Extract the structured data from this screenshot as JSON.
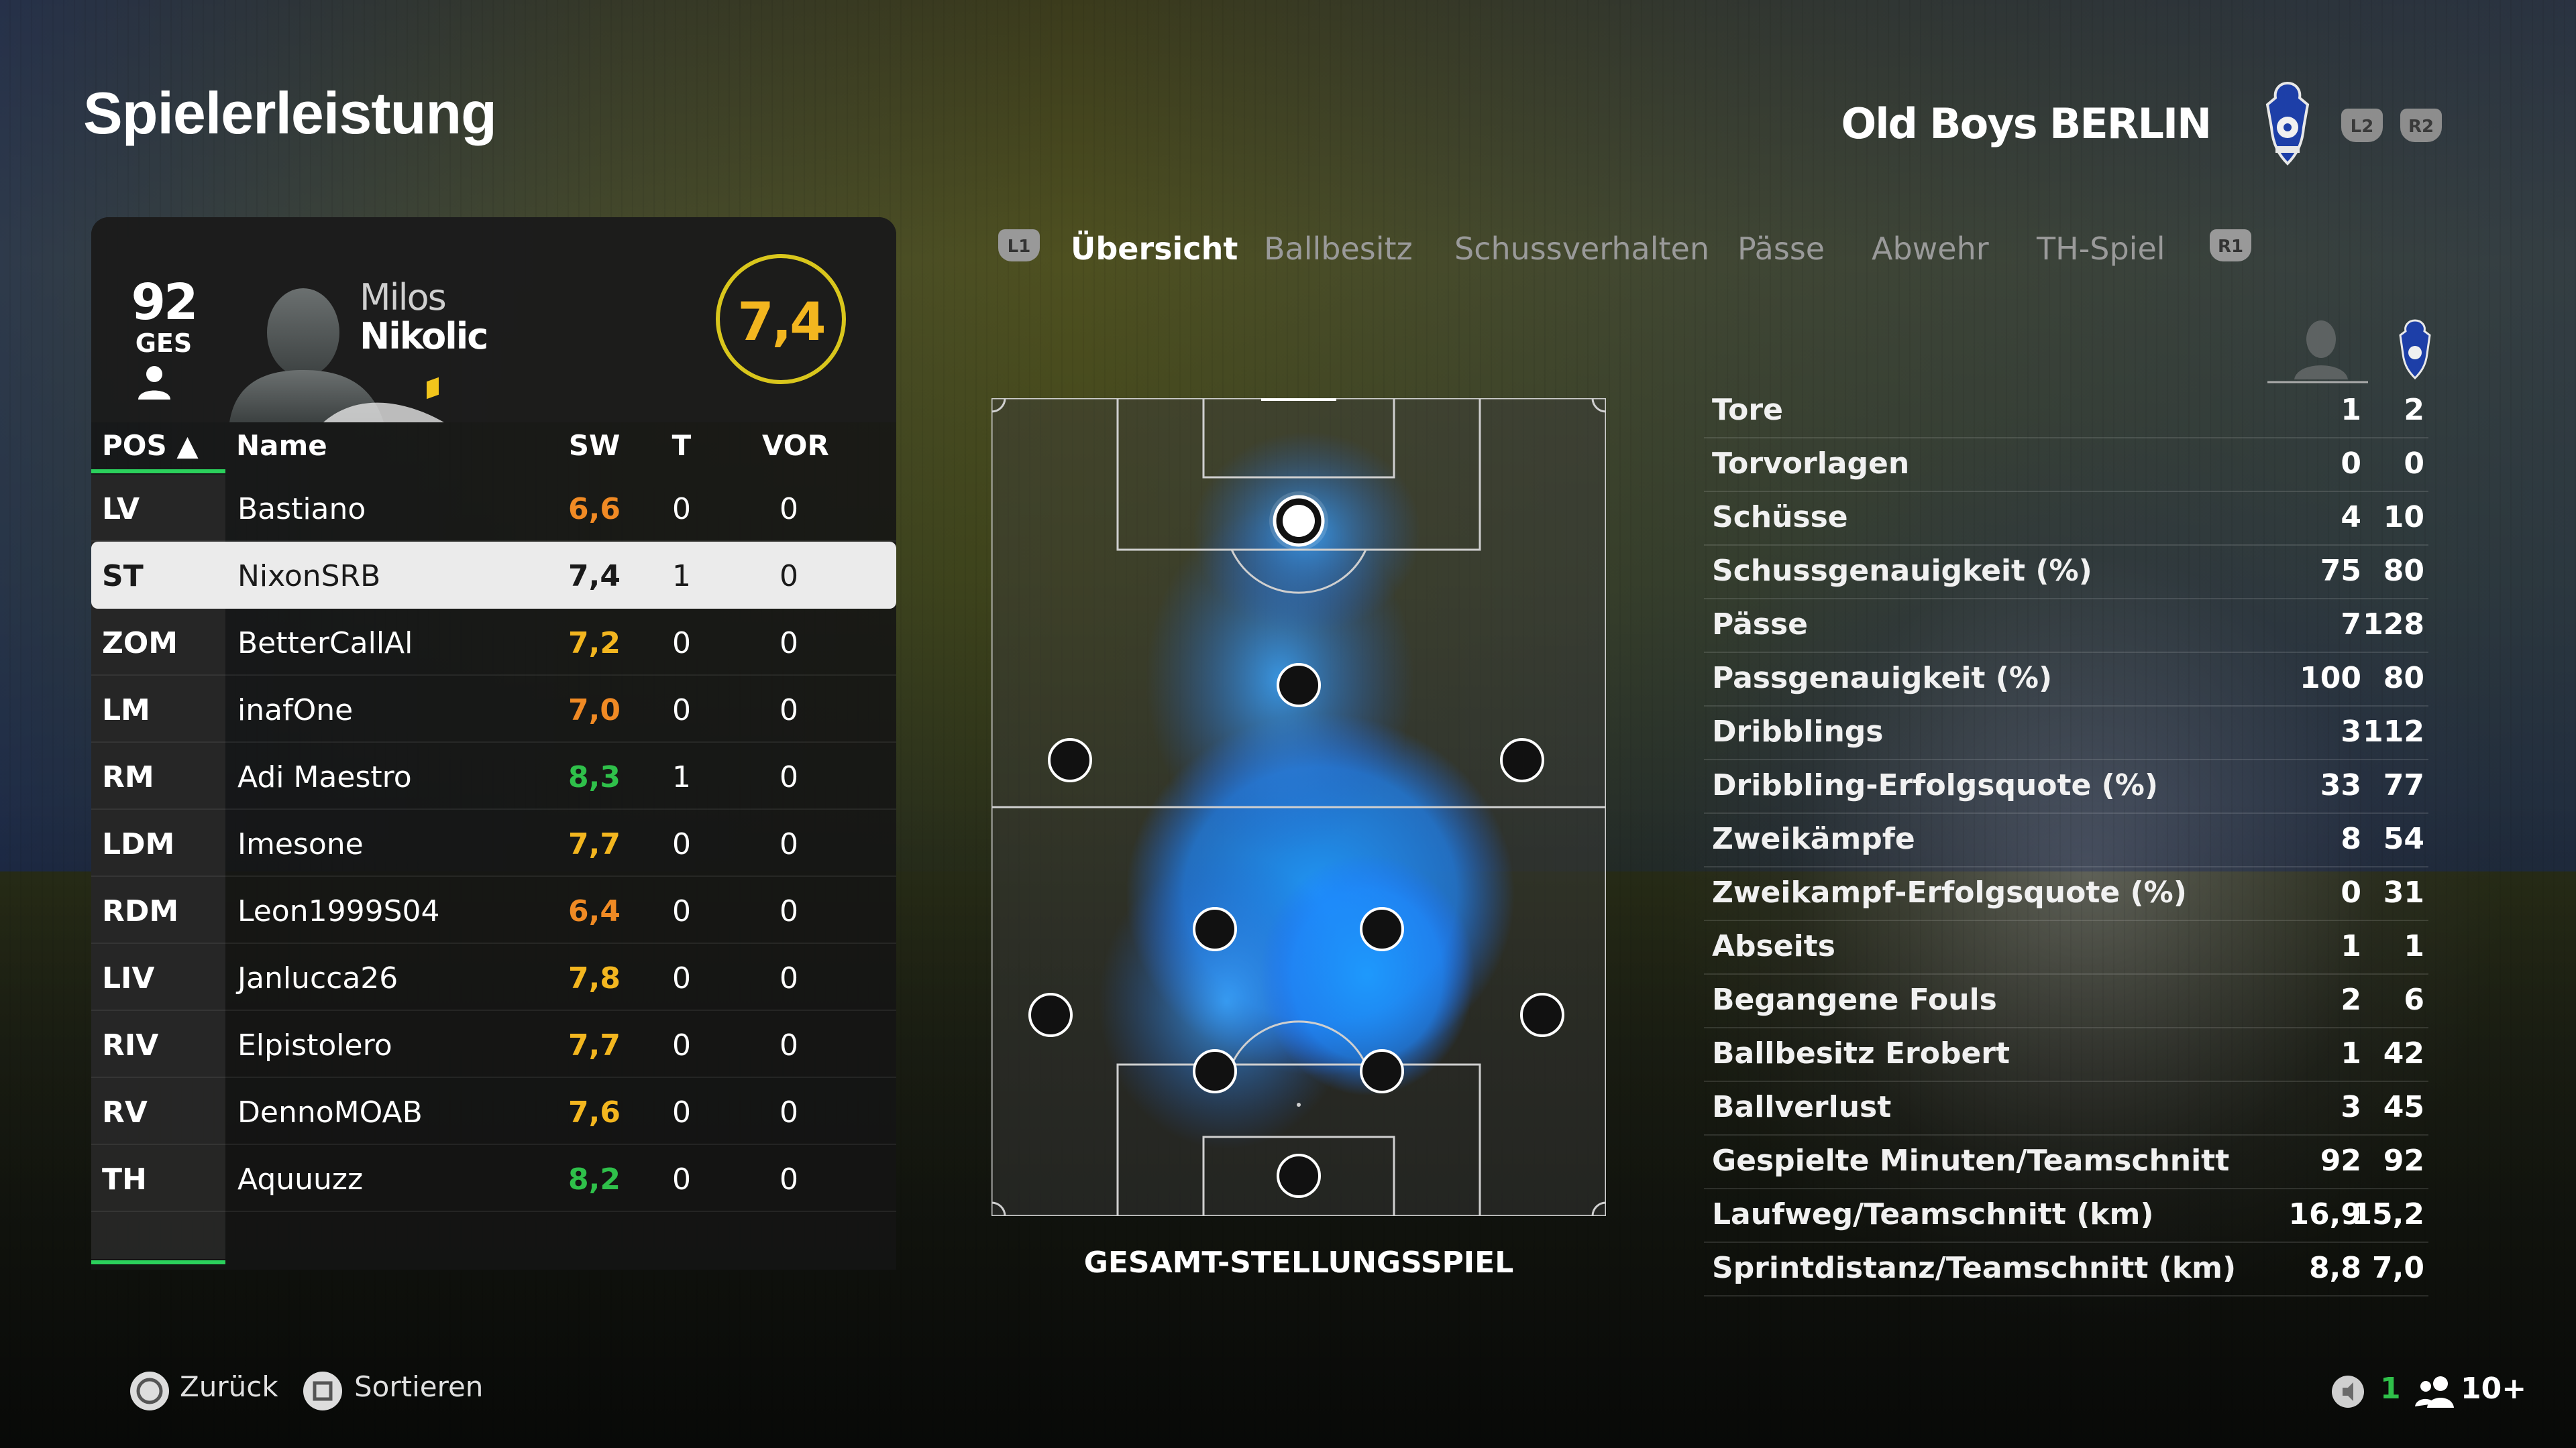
{
  "page": {
    "title": "Spielerleistung"
  },
  "team": {
    "name": "Old Boys BERLIN",
    "btn_left": "L2",
    "btn_right": "R2"
  },
  "player": {
    "overall": "92",
    "overall_label": "GES",
    "first_name": "Milos",
    "last_name": "Nikolic",
    "rating": "7,4"
  },
  "table": {
    "headers": {
      "pos": "POS ▲",
      "name": "Name",
      "sw": "SW",
      "t": "T",
      "vor": "VOR"
    },
    "rows": [
      {
        "pos": "LV",
        "name": "Bastiano",
        "sw": "6,6",
        "t": "0",
        "vor": "0",
        "color": "#f08a24"
      },
      {
        "pos": "ST",
        "name": "NixonSRB",
        "sw": "7,4",
        "t": "1",
        "vor": "0",
        "color": "#1a1a1a"
      },
      {
        "pos": "ZOM",
        "name": "BetterCallAl",
        "sw": "7,2",
        "t": "0",
        "vor": "0",
        "color": "#f3b61f"
      },
      {
        "pos": "LM",
        "name": "inafOne",
        "sw": "7,0",
        "t": "0",
        "vor": "0",
        "color": "#f08a24"
      },
      {
        "pos": "RM",
        "name": "Adi Maestro",
        "sw": "8,3",
        "t": "1",
        "vor": "0",
        "color": "#2fc04a"
      },
      {
        "pos": "LDM",
        "name": "Imesone",
        "sw": "7,7",
        "t": "0",
        "vor": "0",
        "color": "#f3b61f"
      },
      {
        "pos": "RDM",
        "name": "Leon1999S04",
        "sw": "6,4",
        "t": "0",
        "vor": "0",
        "color": "#f08a24"
      },
      {
        "pos": "LIV",
        "name": "Janlucca26",
        "sw": "7,8",
        "t": "0",
        "vor": "0",
        "color": "#f3b61f"
      },
      {
        "pos": "RIV",
        "name": "Elpistolero",
        "sw": "7,7",
        "t": "0",
        "vor": "0",
        "color": "#f3b61f"
      },
      {
        "pos": "RV",
        "name": "DennoMOAB",
        "sw": "7,6",
        "t": "0",
        "vor": "0",
        "color": "#f3b61f"
      },
      {
        "pos": "TH",
        "name": "Aquuuzz",
        "sw": "8,2",
        "t": "0",
        "vor": "0",
        "color": "#2fc04a"
      }
    ]
  },
  "tabs": {
    "left_bumper": "L1",
    "right_bumper": "R1",
    "items": [
      "Übersicht",
      "Ballbesitz",
      "Schussverhalten",
      "Pässe",
      "Abwehr",
      "TH-Spiel"
    ],
    "active": "Übersicht"
  },
  "pitch": {
    "label": "GESAMT-STELLUNGSSPIEL"
  },
  "stats": [
    {
      "label": "Tore",
      "player": "1",
      "team": "2"
    },
    {
      "label": "Torvorlagen",
      "player": "0",
      "team": "0"
    },
    {
      "label": "Schüsse",
      "player": "4",
      "team": "10"
    },
    {
      "label": "Schussgenauigkeit (%)",
      "player": "75",
      "team": "80"
    },
    {
      "label": "Pässe",
      "player": "7",
      "team": "128"
    },
    {
      "label": "Passgenauigkeit (%)",
      "player": "100",
      "team": "80"
    },
    {
      "label": "Dribblings",
      "player": "3",
      "team": "112"
    },
    {
      "label": "Dribbling-Erfolgsquote (%)",
      "player": "33",
      "team": "77"
    },
    {
      "label": "Zweikämpfe",
      "player": "8",
      "team": "54"
    },
    {
      "label": "Zweikampf-Erfolgsquote (%)",
      "player": "0",
      "team": "31"
    },
    {
      "label": "Abseits",
      "player": "1",
      "team": "1"
    },
    {
      "label": "Begangene Fouls",
      "player": "2",
      "team": "6"
    },
    {
      "label": "Ballbesitz Erobert",
      "player": "1",
      "team": "42"
    },
    {
      "label": "Ballverlust",
      "player": "3",
      "team": "45"
    },
    {
      "label": "Gespielte Minuten/Teamschnitt",
      "player": "92",
      "team": "92"
    },
    {
      "label": "Laufweg/Teamschnitt (km)",
      "player": "16,9",
      "team": "15,2"
    },
    {
      "label": "Sprintdistanz/Teamschnitt (km)",
      "player": "8,8",
      "team": "7,0"
    }
  ],
  "footer": {
    "back_label": "Zurück",
    "sort_label": "Sortieren",
    "mic_count": "1",
    "players_count": "10+"
  },
  "colors": {
    "accent_green": "#2bd05c",
    "rating_yellow": "#f3b61f",
    "heat_blue": "#1e90ff"
  }
}
